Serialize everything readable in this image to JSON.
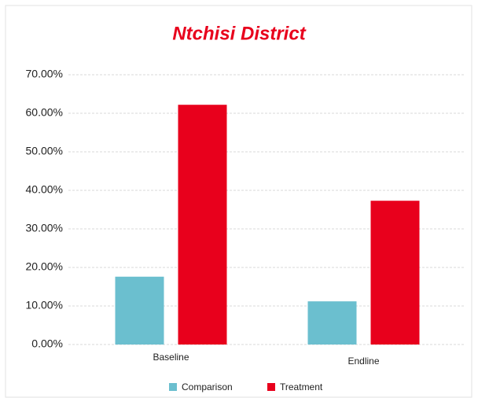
{
  "chart_data": {
    "type": "bar",
    "title": "Ntchisi District",
    "categories": [
      "Baseline",
      "Endline"
    ],
    "series": [
      {
        "name": "Comparison",
        "color": "#6bbfcf",
        "values": [
          17.6,
          11.2
        ]
      },
      {
        "name": "Treatment",
        "color": "#e8001c",
        "values": [
          62.2,
          37.3
        ]
      }
    ],
    "ylim": [
      0,
      70
    ],
    "yticks": [
      {
        "value": 0,
        "label": "0.00%"
      },
      {
        "value": 10,
        "label": "10.00%"
      },
      {
        "value": 20,
        "label": "20.00%"
      },
      {
        "value": 30,
        "label": "30.00%"
      },
      {
        "value": 40,
        "label": "40.00%"
      },
      {
        "value": 50,
        "label": "50.00%"
      },
      {
        "value": 60,
        "label": "60.00%"
      },
      {
        "value": 70,
        "label": "70.00%"
      }
    ],
    "grid": true,
    "legend": "bottom"
  }
}
